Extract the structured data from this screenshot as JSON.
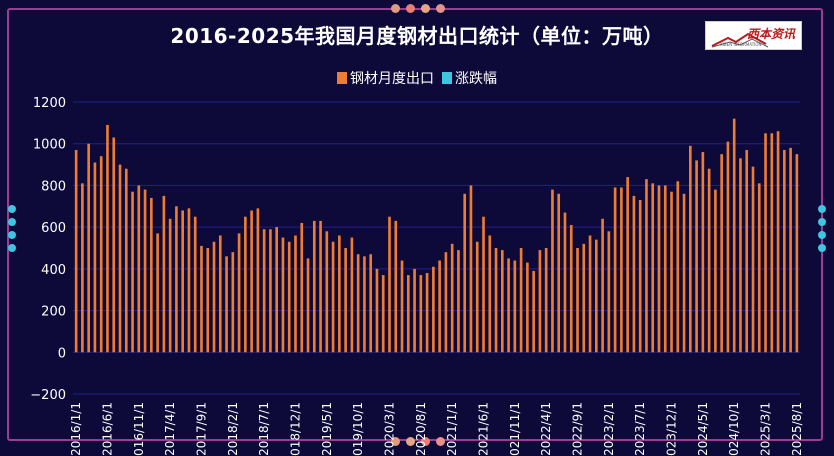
{
  "title": "2016-2025年我国月度钢材出口统计（单位：万吨）",
  "logo": {
    "text": "西本资讯",
    "subtext": "XIBEN INFORMATION"
  },
  "colors": {
    "background": "#0d0a3a",
    "bar": "#ee7d31",
    "change": "#3ec6e0",
    "frame": "#9b3e93",
    "grid": "#1f1f8f"
  },
  "chart_data": {
    "type": "bar",
    "title": "2016-2025年我国月度钢材出口统计（单位：万吨）",
    "ylim": [
      -200,
      1200
    ],
    "yticks": [
      "−200",
      "0",
      "200",
      "400",
      "600",
      "800",
      "1000",
      "1200"
    ],
    "grid": true,
    "legend_position": "top",
    "xtick_labels": [
      "2016/1/1",
      "2016/6/1",
      "2016/11/1",
      "2017/4/1",
      "2017/9/1",
      "2018/2/1",
      "2018/7/1",
      "2018/12/1",
      "2019/5/1",
      "2019/10/1",
      "2020/3/1",
      "2020/8/1",
      "2021/1/1",
      "2021/6/1",
      "2021/11/1",
      "2022/4/1",
      "2022/9/1",
      "2023/2/1",
      "2023/7/1",
      "2023/12/1",
      "2024/5/1",
      "2024/10/1",
      "2025/3/1",
      "2025/8/1"
    ],
    "series": [
      {
        "name": "钢材月度出口",
        "type": "bar",
        "values": [
          970,
          810,
          1000,
          910,
          940,
          1090,
          1030,
          900,
          880,
          770,
          800,
          780,
          740,
          570,
          750,
          640,
          700,
          680,
          690,
          650,
          510,
          500,
          530,
          560,
          460,
          480,
          570,
          650,
          680,
          690,
          590,
          590,
          600,
          550,
          530,
          560,
          620,
          450,
          630,
          630,
          580,
          530,
          560,
          500,
          550,
          470,
          460,
          470,
          400,
          370,
          650,
          630,
          440,
          370,
          400,
          370,
          380,
          410,
          440,
          480,
          520,
          490,
          760,
          800,
          530,
          650,
          560,
          500,
          490,
          450,
          440,
          500,
          430,
          390,
          490,
          500,
          780,
          760,
          670,
          610,
          500,
          520,
          560,
          540,
          640,
          580,
          790,
          790,
          840,
          750,
          730,
          830,
          810,
          800,
          800,
          770,
          820,
          760,
          990,
          920,
          960,
          880,
          780,
          950,
          1010,
          1120,
          930,
          970,
          890,
          810,
          1050,
          1050,
          1060,
          970,
          980,
          950
        ]
      },
      {
        "name": "涨跌幅",
        "type": "line",
        "values": []
      }
    ]
  }
}
